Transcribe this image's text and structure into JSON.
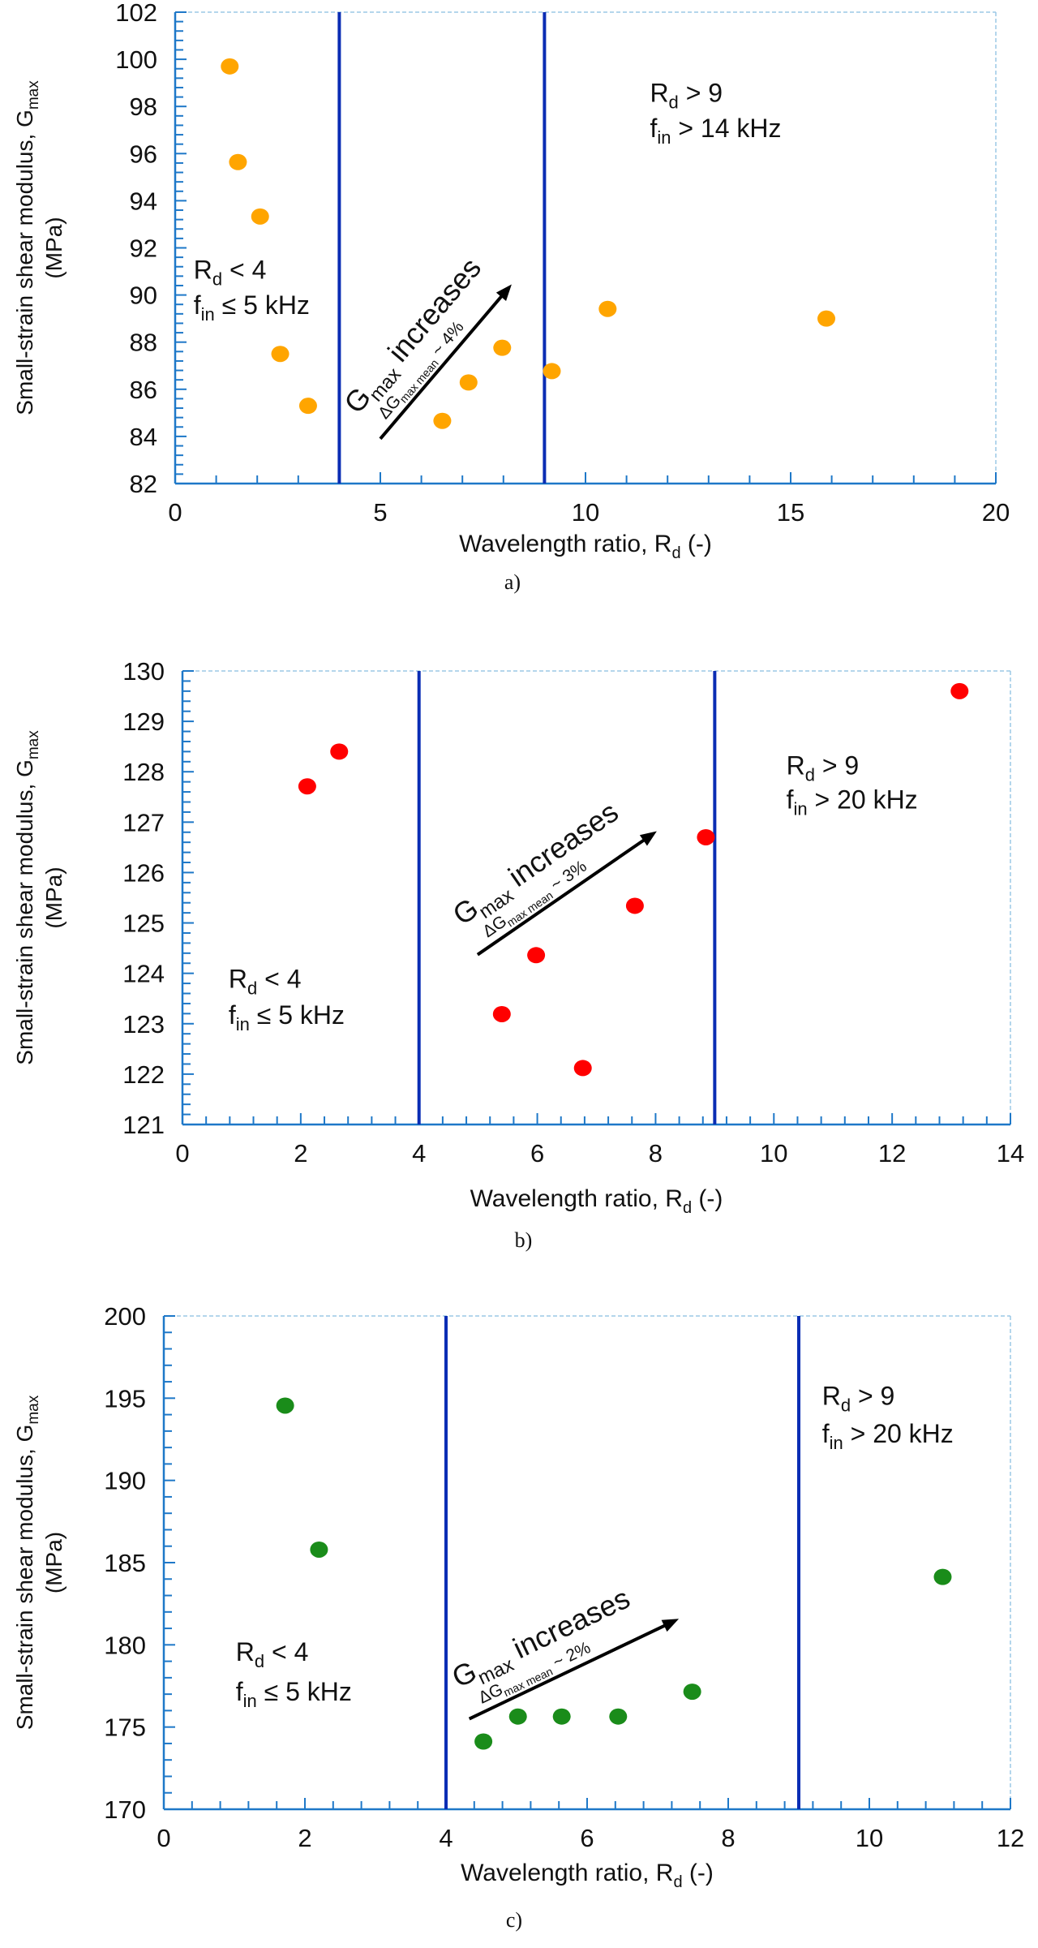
{
  "chart_data": [
    {
      "type": "scatter",
      "panel_label": "a)",
      "xlabel": {
        "text": "Wavelength ratio, R",
        "sub": "d",
        "tail": " (-)"
      },
      "ylabel": {
        "line1": "Small-strain shear modulus, G",
        "line1_sub": "max",
        "line2": "(MPa)"
      },
      "xlim": [
        0,
        20
      ],
      "ylim": [
        82,
        102
      ],
      "xticks": [
        0,
        5,
        10,
        15,
        20
      ],
      "yticks": [
        82,
        84,
        86,
        88,
        90,
        92,
        94,
        96,
        98,
        100,
        102
      ],
      "grid": false,
      "color": "#FFA500",
      "vlines": [
        4,
        9
      ],
      "points": {
        "x": [
          1.33,
          1.53,
          2.07,
          2.56,
          3.24,
          6.51,
          7.15,
          7.97,
          9.18,
          10.54,
          15.87
        ],
        "y": [
          99.7,
          95.64,
          93.33,
          87.5,
          85.3,
          84.66,
          86.29,
          87.76,
          86.77,
          89.41,
          89.0
        ]
      },
      "annotations": {
        "left_region": {
          "l1": "R",
          "l1_sub": "d",
          "l1_tail": " < 4",
          "l2": "f",
          "l2_sub": "in",
          "l2_tail": " ≤ 5 kHz"
        },
        "right_region": {
          "l1": "R",
          "l1_sub": "d",
          "l1_tail": " > 9",
          "l2": "f",
          "l2_sub": "in",
          "l2_tail": " > 14 kHz"
        },
        "trend": {
          "main": "G",
          "main_sub": "max",
          "main_tail": " increases",
          "delta": "ΔG",
          "delta_sub": "max mean",
          "delta_tail": " ~ 4%"
        }
      }
    },
    {
      "type": "scatter",
      "panel_label": "b)",
      "xlabel": {
        "text": "Wavelength ratio, R",
        "sub": "d",
        "tail": " (-)"
      },
      "ylabel": {
        "line1": "Small-strain shear modulus, G",
        "line1_sub": "max",
        "line2": "(MPa)"
      },
      "xlim": [
        0,
        14
      ],
      "ylim": [
        121,
        130
      ],
      "xticks": [
        0,
        2,
        4,
        6,
        8,
        10,
        12,
        14
      ],
      "yticks": [
        121,
        122,
        123,
        124,
        125,
        126,
        127,
        128,
        129,
        130
      ],
      "grid": false,
      "color": "#FF0000",
      "vlines": [
        4,
        9
      ],
      "points": {
        "x": [
          2.11,
          2.65,
          5.4,
          5.98,
          6.77,
          7.65,
          8.85,
          13.14
        ],
        "y": [
          127.71,
          128.4,
          123.19,
          124.36,
          122.12,
          125.34,
          126.7,
          129.6
        ]
      },
      "annotations": {
        "left_region": {
          "l1": "R",
          "l1_sub": "d",
          "l1_tail": " < 4",
          "l2": "f",
          "l2_sub": "in",
          "l2_tail": " ≤ 5 kHz"
        },
        "right_region": {
          "l1": "R",
          "l1_sub": "d",
          "l1_tail": " > 9",
          "l2": "f",
          "l2_sub": "in",
          "l2_tail": " > 20 kHz"
        },
        "trend": {
          "main": "G",
          "main_sub": "max",
          "main_tail": " increases",
          "delta": "ΔG",
          "delta_sub": "max mean",
          "delta_tail": " ~ 3%"
        }
      }
    },
    {
      "type": "scatter",
      "panel_label": "c)",
      "xlabel": {
        "text": "Wavelength ratio, R",
        "sub": "d",
        "tail": " (-)"
      },
      "ylabel": {
        "line1": "Small-strain shear modulus, G",
        "line1_sub": "max",
        "line2": "(MPa)"
      },
      "xlim": [
        0,
        12
      ],
      "ylim": [
        170,
        200
      ],
      "xticks": [
        0,
        2,
        4,
        6,
        8,
        10,
        12
      ],
      "yticks": [
        170,
        175,
        180,
        185,
        190,
        195,
        200
      ],
      "grid": false,
      "color": "#1A8C1A",
      "vlines": [
        4,
        9
      ],
      "points": {
        "x": [
          1.72,
          2.2,
          4.53,
          5.02,
          5.64,
          6.44,
          7.49,
          11.04
        ],
        "y": [
          194.55,
          185.79,
          174.12,
          175.64,
          175.64,
          175.64,
          177.15,
          184.13
        ]
      },
      "annotations": {
        "left_region": {
          "l1": "R",
          "l1_sub": "d",
          "l1_tail": " < 4",
          "l2": "f",
          "l2_sub": "in",
          "l2_tail": " ≤ 5 kHz"
        },
        "right_region": {
          "l1": "R",
          "l1_sub": "d",
          "l1_tail": " > 9",
          "l2": "f",
          "l2_sub": "in",
          "l2_tail": " > 20 kHz"
        },
        "trend": {
          "main": "G",
          "main_sub": "max",
          "main_tail": " increases",
          "delta": "ΔG",
          "delta_sub": "max mean",
          "delta_tail": " ~ 2%"
        }
      }
    }
  ],
  "colors": {
    "region_boundary": "#0A2DB4",
    "axis": "#1E78C8",
    "frame": "#9CC8E6",
    "arrow": "#000000"
  }
}
